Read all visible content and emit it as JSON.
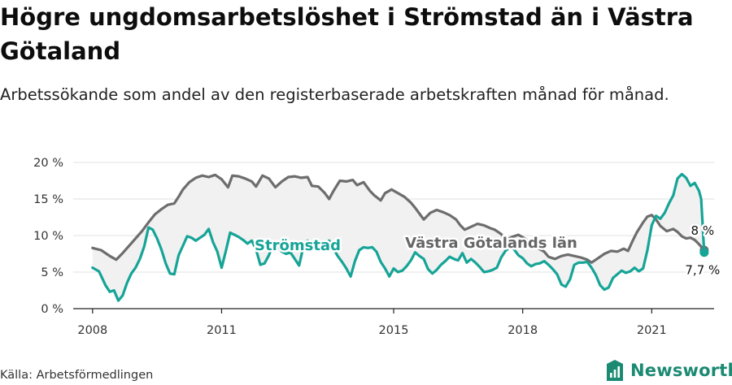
{
  "title": "Högre ungdomsarbetslöshet i Strömstad än i Västra Götaland",
  "subtitle": "Arbetssökande som andel av den registerbaserade arbetskraften månad för månad.",
  "source": "Källa: Arbetsförmedlingen",
  "brand": {
    "name": "Newsworthy",
    "icon": "newsworthy-logo-icon",
    "color": "#1b8a73"
  },
  "chart_data": {
    "type": "line",
    "x_unit": "year",
    "xlim": [
      2007.55,
      2022.45
    ],
    "xticks": [
      2008,
      2011,
      2015,
      2018,
      2021
    ],
    "ylim": [
      0,
      20
    ],
    "yticks": [
      0,
      5,
      10,
      15,
      20
    ],
    "ytick_labels": [
      "0 %",
      "5 %",
      "10 %",
      "15 %",
      "20 %"
    ],
    "grid": "horizontal",
    "fill_between_series": true,
    "series": [
      {
        "name": "Västra Götalands län",
        "color": "#6d6d6d",
        "label_inline": "Västra Götalands län",
        "end_label": "8 %",
        "points": [
          [
            2008.0,
            8.3
          ],
          [
            2008.2,
            8.0
          ],
          [
            2008.4,
            7.2
          ],
          [
            2008.55,
            6.7
          ],
          [
            2008.7,
            7.6
          ],
          [
            2008.85,
            8.6
          ],
          [
            2009.0,
            9.6
          ],
          [
            2009.15,
            10.6
          ],
          [
            2009.3,
            11.8
          ],
          [
            2009.45,
            12.9
          ],
          [
            2009.6,
            13.6
          ],
          [
            2009.75,
            14.2
          ],
          [
            2009.9,
            14.4
          ],
          [
            2010.0,
            15.3
          ],
          [
            2010.1,
            16.3
          ],
          [
            2010.25,
            17.3
          ],
          [
            2010.4,
            17.9
          ],
          [
            2010.55,
            18.2
          ],
          [
            2010.7,
            18.0
          ],
          [
            2010.85,
            18.3
          ],
          [
            2011.0,
            17.7
          ],
          [
            2011.15,
            16.6
          ],
          [
            2011.25,
            18.2
          ],
          [
            2011.4,
            18.1
          ],
          [
            2011.55,
            17.8
          ],
          [
            2011.7,
            17.4
          ],
          [
            2011.8,
            16.7
          ],
          [
            2011.95,
            18.2
          ],
          [
            2012.1,
            17.8
          ],
          [
            2012.25,
            16.6
          ],
          [
            2012.4,
            17.4
          ],
          [
            2012.55,
            18.0
          ],
          [
            2012.7,
            18.1
          ],
          [
            2012.85,
            17.9
          ],
          [
            2013.0,
            18.0
          ],
          [
            2013.1,
            16.8
          ],
          [
            2013.25,
            16.7
          ],
          [
            2013.4,
            15.8
          ],
          [
            2013.5,
            15.0
          ],
          [
            2013.6,
            16.1
          ],
          [
            2013.75,
            17.5
          ],
          [
            2013.9,
            17.4
          ],
          [
            2014.05,
            17.6
          ],
          [
            2014.15,
            16.9
          ],
          [
            2014.3,
            17.3
          ],
          [
            2014.45,
            16.1
          ],
          [
            2014.55,
            15.5
          ],
          [
            2014.7,
            14.8
          ],
          [
            2014.8,
            15.8
          ],
          [
            2014.95,
            16.3
          ],
          [
            2015.1,
            15.8
          ],
          [
            2015.25,
            15.3
          ],
          [
            2015.4,
            14.5
          ],
          [
            2015.5,
            13.8
          ],
          [
            2015.6,
            13.0
          ],
          [
            2015.7,
            12.2
          ],
          [
            2015.85,
            13.1
          ],
          [
            2016.0,
            13.5
          ],
          [
            2016.15,
            13.2
          ],
          [
            2016.3,
            12.8
          ],
          [
            2016.45,
            12.2
          ],
          [
            2016.55,
            11.4
          ],
          [
            2016.65,
            10.8
          ],
          [
            2016.8,
            11.2
          ],
          [
            2016.95,
            11.6
          ],
          [
            2017.1,
            11.4
          ],
          [
            2017.25,
            11.0
          ],
          [
            2017.35,
            10.8
          ],
          [
            2017.5,
            10.2
          ],
          [
            2017.6,
            9.4
          ],
          [
            2017.75,
            9.8
          ],
          [
            2017.9,
            10.1
          ],
          [
            2018.05,
            9.6
          ],
          [
            2018.2,
            8.9
          ],
          [
            2018.35,
            8.3
          ],
          [
            2018.5,
            7.8
          ],
          [
            2018.6,
            7.1
          ],
          [
            2018.75,
            6.8
          ],
          [
            2018.9,
            7.2
          ],
          [
            2019.05,
            7.4
          ],
          [
            2019.2,
            7.2
          ],
          [
            2019.35,
            7.0
          ],
          [
            2019.5,
            6.7
          ],
          [
            2019.6,
            6.3
          ],
          [
            2019.75,
            6.9
          ],
          [
            2019.9,
            7.5
          ],
          [
            2020.05,
            7.9
          ],
          [
            2020.2,
            7.8
          ],
          [
            2020.35,
            8.2
          ],
          [
            2020.45,
            7.9
          ],
          [
            2020.55,
            9.2
          ],
          [
            2020.65,
            10.4
          ],
          [
            2020.8,
            11.8
          ],
          [
            2020.9,
            12.6
          ],
          [
            2021.0,
            12.8
          ],
          [
            2021.1,
            12.2
          ],
          [
            2021.2,
            11.3
          ],
          [
            2021.35,
            10.6
          ],
          [
            2021.5,
            10.9
          ],
          [
            2021.6,
            10.5
          ],
          [
            2021.7,
            9.9
          ],
          [
            2021.8,
            9.6
          ],
          [
            2021.9,
            9.7
          ],
          [
            2022.0,
            9.4
          ],
          [
            2022.1,
            8.8
          ],
          [
            2022.22,
            8.0
          ]
        ]
      },
      {
        "name": "Strömstad",
        "color": "#16a497",
        "label_inline": "Strömstad",
        "end_label": "7,7 %",
        "points": [
          [
            2008.0,
            5.6
          ],
          [
            2008.15,
            5.1
          ],
          [
            2008.3,
            3.2
          ],
          [
            2008.4,
            2.3
          ],
          [
            2008.5,
            2.5
          ],
          [
            2008.6,
            1.1
          ],
          [
            2008.7,
            1.8
          ],
          [
            2008.8,
            3.5
          ],
          [
            2008.9,
            4.8
          ],
          [
            2009.0,
            5.6
          ],
          [
            2009.1,
            6.8
          ],
          [
            2009.2,
            8.5
          ],
          [
            2009.3,
            11.1
          ],
          [
            2009.4,
            10.8
          ],
          [
            2009.5,
            9.6
          ],
          [
            2009.6,
            8.1
          ],
          [
            2009.7,
            6.2
          ],
          [
            2009.8,
            4.8
          ],
          [
            2009.9,
            4.7
          ],
          [
            2010.0,
            7.3
          ],
          [
            2010.1,
            8.6
          ],
          [
            2010.2,
            9.9
          ],
          [
            2010.3,
            9.7
          ],
          [
            2010.4,
            9.3
          ],
          [
            2010.5,
            9.7
          ],
          [
            2010.6,
            10.1
          ],
          [
            2010.7,
            10.9
          ],
          [
            2010.8,
            9.1
          ],
          [
            2010.9,
            7.8
          ],
          [
            2011.0,
            5.6
          ],
          [
            2011.1,
            7.9
          ],
          [
            2011.2,
            10.4
          ],
          [
            2011.3,
            10.1
          ],
          [
            2011.4,
            9.8
          ],
          [
            2011.5,
            9.4
          ],
          [
            2011.6,
            8.9
          ],
          [
            2011.7,
            9.3
          ],
          [
            2011.8,
            8.1
          ],
          [
            2011.9,
            6.0
          ],
          [
            2012.0,
            6.2
          ],
          [
            2012.1,
            7.3
          ],
          [
            2012.2,
            8.8
          ],
          [
            2012.3,
            8.6
          ],
          [
            2012.4,
            7.8
          ],
          [
            2012.5,
            7.5
          ],
          [
            2012.6,
            7.7
          ],
          [
            2012.7,
            6.8
          ],
          [
            2012.8,
            5.9
          ],
          [
            2012.9,
            8.4
          ],
          [
            2013.0,
            9.3
          ],
          [
            2013.1,
            8.6
          ],
          [
            2013.2,
            8.3
          ],
          [
            2013.3,
            8.4
          ],
          [
            2013.4,
            8.9
          ],
          [
            2013.5,
            9.3
          ],
          [
            2013.6,
            8.2
          ],
          [
            2013.7,
            7.2
          ],
          [
            2013.8,
            6.4
          ],
          [
            2013.9,
            5.5
          ],
          [
            2014.0,
            4.4
          ],
          [
            2014.1,
            6.5
          ],
          [
            2014.2,
            8.0
          ],
          [
            2014.3,
            8.4
          ],
          [
            2014.4,
            8.3
          ],
          [
            2014.5,
            8.4
          ],
          [
            2014.6,
            7.8
          ],
          [
            2014.7,
            6.4
          ],
          [
            2014.8,
            5.5
          ],
          [
            2014.9,
            4.4
          ],
          [
            2015.0,
            5.5
          ],
          [
            2015.1,
            5.0
          ],
          [
            2015.2,
            5.2
          ],
          [
            2015.3,
            5.8
          ],
          [
            2015.4,
            6.6
          ],
          [
            2015.5,
            7.7
          ],
          [
            2015.6,
            7.2
          ],
          [
            2015.7,
            6.8
          ],
          [
            2015.8,
            5.4
          ],
          [
            2015.9,
            4.8
          ],
          [
            2016.0,
            5.3
          ],
          [
            2016.1,
            6.0
          ],
          [
            2016.2,
            6.5
          ],
          [
            2016.3,
            7.1
          ],
          [
            2016.4,
            6.8
          ],
          [
            2016.5,
            6.6
          ],
          [
            2016.6,
            7.6
          ],
          [
            2016.7,
            6.3
          ],
          [
            2016.8,
            6.8
          ],
          [
            2016.9,
            6.3
          ],
          [
            2017.0,
            5.7
          ],
          [
            2017.1,
            5.0
          ],
          [
            2017.2,
            5.1
          ],
          [
            2017.3,
            5.3
          ],
          [
            2017.4,
            5.6
          ],
          [
            2017.5,
            7.0
          ],
          [
            2017.6,
            7.9
          ],
          [
            2017.7,
            8.4
          ],
          [
            2017.8,
            8.1
          ],
          [
            2017.9,
            7.3
          ],
          [
            2018.0,
            6.9
          ],
          [
            2018.1,
            6.2
          ],
          [
            2018.2,
            5.8
          ],
          [
            2018.3,
            6.1
          ],
          [
            2018.4,
            6.2
          ],
          [
            2018.5,
            6.5
          ],
          [
            2018.6,
            6.0
          ],
          [
            2018.7,
            5.4
          ],
          [
            2018.8,
            4.7
          ],
          [
            2018.9,
            3.3
          ],
          [
            2019.0,
            3.0
          ],
          [
            2019.1,
            4.0
          ],
          [
            2019.2,
            6.0
          ],
          [
            2019.3,
            6.3
          ],
          [
            2019.4,
            6.3
          ],
          [
            2019.5,
            6.4
          ],
          [
            2019.6,
            5.6
          ],
          [
            2019.7,
            4.6
          ],
          [
            2019.8,
            3.2
          ],
          [
            2019.9,
            2.6
          ],
          [
            2020.0,
            2.9
          ],
          [
            2020.1,
            4.2
          ],
          [
            2020.2,
            4.7
          ],
          [
            2020.3,
            5.2
          ],
          [
            2020.4,
            4.9
          ],
          [
            2020.5,
            5.1
          ],
          [
            2020.6,
            5.6
          ],
          [
            2020.7,
            5.1
          ],
          [
            2020.8,
            5.5
          ],
          [
            2020.9,
            8.0
          ],
          [
            2021.0,
            11.4
          ],
          [
            2021.1,
            12.7
          ],
          [
            2021.2,
            12.3
          ],
          [
            2021.3,
            13.1
          ],
          [
            2021.4,
            14.4
          ],
          [
            2021.5,
            15.5
          ],
          [
            2021.6,
            17.8
          ],
          [
            2021.7,
            18.4
          ],
          [
            2021.8,
            17.9
          ],
          [
            2021.9,
            16.8
          ],
          [
            2022.0,
            17.2
          ],
          [
            2022.1,
            16.1
          ],
          [
            2022.15,
            15.0
          ],
          [
            2022.22,
            7.7
          ]
        ]
      }
    ]
  }
}
